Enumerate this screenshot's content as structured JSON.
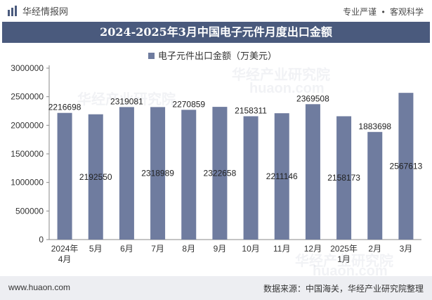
{
  "brand": {
    "name": "华经情报网"
  },
  "top_links": {
    "left": "专业严谨",
    "sep": "•",
    "right": "客观科学"
  },
  "title": "2024-2025年3月中国电子元件月度出口金额",
  "watermarks": [
    "华经产业研究院",
    "huaon.com"
  ],
  "footer": {
    "website": "www.huaon.com",
    "source": "数据来源：中国海关，华经产业研究院整理"
  },
  "colors": {
    "bar": "#6f7c9f",
    "title_bg": "#4a5a7d",
    "footer_bg": "#edeef2"
  },
  "chart_data": {
    "type": "bar",
    "categories": [
      "2024年\n4月",
      "5月",
      "6月",
      "7月",
      "8月",
      "9月",
      "10月",
      "11月",
      "12月",
      "2025年\n1月",
      "2月",
      "3月"
    ],
    "series": [
      {
        "name": "电子元件出口金额（万美元）",
        "values": [
          2216698,
          2192550,
          2319081,
          2318989,
          2270859,
          2322658,
          2158311,
          2211146,
          2369508,
          2158173,
          1883698,
          2567613
        ]
      }
    ],
    "data_labels": [
      "2216698",
      "2192550",
      "2319081",
      "2318989",
      "2270859",
      "2322658",
      "2158311",
      "2211146",
      "2369508",
      "2158173",
      "1883698",
      "2567613"
    ],
    "label_inside": [
      false,
      true,
      false,
      true,
      false,
      true,
      false,
      true,
      false,
      true,
      false,
      true
    ],
    "yticks": [
      0,
      500000,
      1000000,
      1500000,
      2000000,
      2500000,
      3000000
    ],
    "ylim": [
      0,
      3000000
    ],
    "legend_position": "top-center",
    "grid": false
  }
}
